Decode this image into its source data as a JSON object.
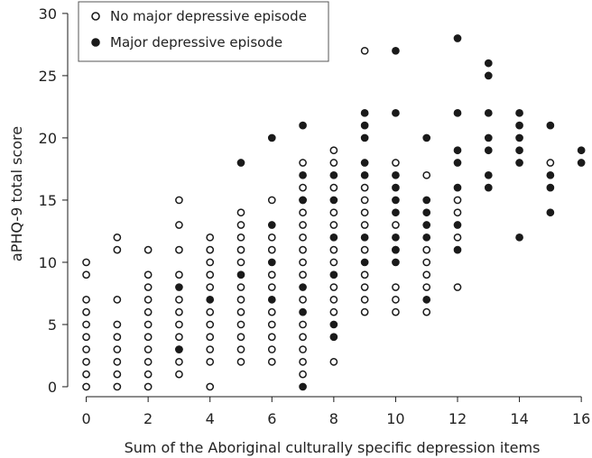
{
  "chart_data": {
    "type": "scatter",
    "xlabel": "Sum of the Aboriginal culturally specific depression items",
    "ylabel": "aPHQ-9 total score",
    "xlim": [
      -0.6,
      16.2
    ],
    "ylim": [
      -0.8,
      30.5
    ],
    "xticks": [
      0,
      2,
      4,
      6,
      8,
      10,
      12,
      14,
      16
    ],
    "yticks": [
      0,
      5,
      10,
      15,
      20,
      25,
      30
    ],
    "grid": false,
    "legend": "top-left",
    "series": [
      {
        "name": "No major depressive episode",
        "marker": "open-circle",
        "color": "#1a1a1a",
        "points": [
          [
            0,
            0
          ],
          [
            0,
            1
          ],
          [
            0,
            2
          ],
          [
            0,
            3
          ],
          [
            0,
            4
          ],
          [
            0,
            5
          ],
          [
            0,
            6
          ],
          [
            0,
            7
          ],
          [
            0,
            9
          ],
          [
            0,
            10
          ],
          [
            1,
            0
          ],
          [
            1,
            1
          ],
          [
            1,
            2
          ],
          [
            1,
            3
          ],
          [
            1,
            4
          ],
          [
            1,
            5
          ],
          [
            1,
            7
          ],
          [
            1,
            11
          ],
          [
            1,
            12
          ],
          [
            2,
            0
          ],
          [
            2,
            1
          ],
          [
            2,
            2
          ],
          [
            2,
            3
          ],
          [
            2,
            4
          ],
          [
            2,
            5
          ],
          [
            2,
            6
          ],
          [
            2,
            7
          ],
          [
            2,
            8
          ],
          [
            2,
            9
          ],
          [
            2,
            11
          ],
          [
            3,
            1
          ],
          [
            3,
            2
          ],
          [
            3,
            3
          ],
          [
            3,
            4
          ],
          [
            3,
            5
          ],
          [
            3,
            6
          ],
          [
            3,
            7
          ],
          [
            3,
            9
          ],
          [
            3,
            11
          ],
          [
            3,
            13
          ],
          [
            3,
            15
          ],
          [
            4,
            0
          ],
          [
            4,
            2
          ],
          [
            4,
            3
          ],
          [
            4,
            4
          ],
          [
            4,
            5
          ],
          [
            4,
            6
          ],
          [
            4,
            8
          ],
          [
            4,
            9
          ],
          [
            4,
            10
          ],
          [
            4,
            11
          ],
          [
            4,
            12
          ],
          [
            5,
            2
          ],
          [
            5,
            3
          ],
          [
            5,
            4
          ],
          [
            5,
            5
          ],
          [
            5,
            6
          ],
          [
            5,
            7
          ],
          [
            5,
            8
          ],
          [
            5,
            10
          ],
          [
            5,
            11
          ],
          [
            5,
            12
          ],
          [
            5,
            13
          ],
          [
            5,
            14
          ],
          [
            6,
            2
          ],
          [
            6,
            3
          ],
          [
            6,
            4
          ],
          [
            6,
            5
          ],
          [
            6,
            6
          ],
          [
            6,
            8
          ],
          [
            6,
            9
          ],
          [
            6,
            11
          ],
          [
            6,
            12
          ],
          [
            6,
            15
          ],
          [
            7,
            1
          ],
          [
            7,
            2
          ],
          [
            7,
            3
          ],
          [
            7,
            4
          ],
          [
            7,
            5
          ],
          [
            7,
            7
          ],
          [
            7,
            9
          ],
          [
            7,
            10
          ],
          [
            7,
            11
          ],
          [
            7,
            12
          ],
          [
            7,
            13
          ],
          [
            7,
            14
          ],
          [
            7,
            15
          ],
          [
            7,
            16
          ],
          [
            7,
            18
          ],
          [
            8,
            2
          ],
          [
            8,
            6
          ],
          [
            8,
            7
          ],
          [
            8,
            8
          ],
          [
            8,
            10
          ],
          [
            8,
            11
          ],
          [
            8,
            13
          ],
          [
            8,
            14
          ],
          [
            8,
            16
          ],
          [
            8,
            18
          ],
          [
            8,
            19
          ],
          [
            9,
            6
          ],
          [
            9,
            7
          ],
          [
            9,
            8
          ],
          [
            9,
            9
          ],
          [
            9,
            11
          ],
          [
            9,
            13
          ],
          [
            9,
            14
          ],
          [
            9,
            15
          ],
          [
            9,
            16
          ],
          [
            9,
            27
          ],
          [
            10,
            6
          ],
          [
            10,
            7
          ],
          [
            10,
            8
          ],
          [
            10,
            11
          ],
          [
            10,
            13
          ],
          [
            10,
            18
          ],
          [
            11,
            6
          ],
          [
            11,
            8
          ],
          [
            11,
            9
          ],
          [
            11,
            10
          ],
          [
            11,
            11
          ],
          [
            11,
            17
          ],
          [
            12,
            8
          ],
          [
            12,
            12
          ],
          [
            12,
            14
          ],
          [
            12,
            15
          ],
          [
            15,
            18
          ]
        ]
      },
      {
        "name": "Major depressive episode",
        "marker": "filled-circle",
        "color": "#1a1a1a",
        "points": [
          [
            3,
            3
          ],
          [
            3,
            8
          ],
          [
            4,
            7
          ],
          [
            5,
            9
          ],
          [
            5,
            18
          ],
          [
            6,
            7
          ],
          [
            6,
            10
          ],
          [
            6,
            13
          ],
          [
            6,
            20
          ],
          [
            7,
            0
          ],
          [
            7,
            6
          ],
          [
            7,
            8
          ],
          [
            7,
            15
          ],
          [
            7,
            17
          ],
          [
            7,
            21
          ],
          [
            8,
            4
          ],
          [
            8,
            5
          ],
          [
            8,
            9
          ],
          [
            8,
            12
          ],
          [
            8,
            15
          ],
          [
            8,
            17
          ],
          [
            9,
            10
          ],
          [
            9,
            12
          ],
          [
            9,
            17
          ],
          [
            9,
            18
          ],
          [
            9,
            20
          ],
          [
            9,
            21
          ],
          [
            9,
            22
          ],
          [
            10,
            10
          ],
          [
            10,
            11
          ],
          [
            10,
            12
          ],
          [
            10,
            14
          ],
          [
            10,
            15
          ],
          [
            10,
            16
          ],
          [
            10,
            17
          ],
          [
            10,
            22
          ],
          [
            10,
            27
          ],
          [
            11,
            7
          ],
          [
            11,
            12
          ],
          [
            11,
            13
          ],
          [
            11,
            14
          ],
          [
            11,
            15
          ],
          [
            11,
            20
          ],
          [
            12,
            11
          ],
          [
            12,
            13
          ],
          [
            12,
            16
          ],
          [
            12,
            18
          ],
          [
            12,
            19
          ],
          [
            12,
            22
          ],
          [
            12,
            28
          ],
          [
            13,
            16
          ],
          [
            13,
            17
          ],
          [
            13,
            19
          ],
          [
            13,
            20
          ],
          [
            13,
            22
          ],
          [
            13,
            25
          ],
          [
            13,
            26
          ],
          [
            14,
            12
          ],
          [
            14,
            18
          ],
          [
            14,
            19
          ],
          [
            14,
            20
          ],
          [
            14,
            21
          ],
          [
            14,
            22
          ],
          [
            15,
            14
          ],
          [
            15,
            16
          ],
          [
            15,
            17
          ],
          [
            15,
            21
          ],
          [
            16,
            18
          ],
          [
            16,
            19
          ]
        ]
      }
    ]
  }
}
